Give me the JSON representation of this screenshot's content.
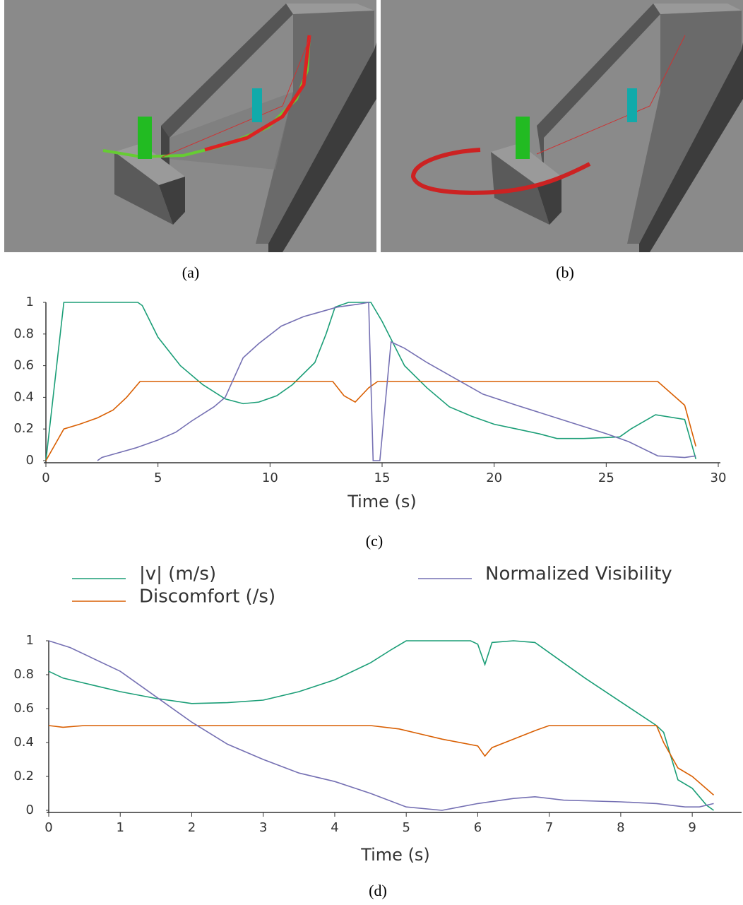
{
  "figures": [
    {
      "caption": "(a)"
    },
    {
      "caption": "(b)"
    }
  ],
  "chart_data": [
    {
      "type": "line",
      "caption": "(c)",
      "xlabel": "Time (s)",
      "xlim": [
        0,
        30
      ],
      "xticks": [
        0,
        5,
        10,
        15,
        20,
        25,
        30
      ],
      "ylim": [
        0,
        1
      ],
      "yticks": [
        0,
        0.2,
        0.4,
        0.6,
        0.8,
        1
      ],
      "series": [
        {
          "name": "|v| (m/s)",
          "color": "#1b9e77",
          "x": [
            0,
            0.8,
            4.1,
            4.3,
            5,
            6,
            7,
            8,
            8.8,
            9.5,
            10.3,
            11,
            12,
            12.5,
            12.9,
            13.5,
            14.5,
            15,
            16,
            17,
            18,
            19,
            20,
            21,
            22,
            22.8,
            24,
            25.6,
            26.1,
            27.2,
            28.5,
            29
          ],
          "values": [
            0,
            1,
            1,
            0.98,
            0.78,
            0.6,
            0.48,
            0.39,
            0.36,
            0.37,
            0.41,
            0.48,
            0.62,
            0.8,
            0.97,
            1,
            1,
            0.88,
            0.6,
            0.46,
            0.34,
            0.28,
            0.23,
            0.2,
            0.17,
            0.14,
            0.14,
            0.15,
            0.2,
            0.29,
            0.26,
            0.01
          ]
        },
        {
          "name": "Discomfort (/s)",
          "color": "#d95f02",
          "x": [
            0,
            0.4,
            0.8,
            1.5,
            2.3,
            3,
            3.6,
            4.2,
            12.8,
            13.3,
            13.8,
            14.4,
            14.8,
            27.3,
            28.5,
            29
          ],
          "values": [
            0,
            0.1,
            0.2,
            0.23,
            0.27,
            0.32,
            0.4,
            0.5,
            0.5,
            0.41,
            0.37,
            0.46,
            0.5,
            0.5,
            0.35,
            0.09
          ]
        },
        {
          "name": "Normalized Visibility",
          "color": "#7570b3",
          "x": [
            2.3,
            2.5,
            3,
            4,
            5,
            5.8,
            6.5,
            7.5,
            8,
            8.8,
            9.5,
            10.5,
            11.5,
            12,
            13,
            14,
            14.4,
            14.6,
            14.9,
            15.4,
            16,
            17,
            18,
            19,
            19.5,
            21,
            23,
            25,
            26,
            27.3,
            28.5,
            29
          ],
          "values": [
            0,
            0.02,
            0.04,
            0.08,
            0.13,
            0.18,
            0.25,
            0.34,
            0.4,
            0.65,
            0.74,
            0.85,
            0.91,
            0.93,
            0.97,
            0.99,
            1,
            0,
            0,
            0.75,
            0.71,
            0.62,
            0.54,
            0.46,
            0.42,
            0.35,
            0.26,
            0.17,
            0.12,
            0.03,
            0.02,
            0.03
          ]
        }
      ]
    },
    {
      "type": "line",
      "caption": "(d)",
      "xlabel": "Time (s)",
      "xlim": [
        0,
        9.7
      ],
      "xticks": [
        0,
        1,
        2,
        3,
        4,
        5,
        6,
        7,
        8,
        9
      ],
      "ylim": [
        0,
        1
      ],
      "yticks": [
        0,
        0.2,
        0.4,
        0.6,
        0.8,
        1
      ],
      "series": [
        {
          "color": "#1b9e77",
          "x": [
            0,
            0.2,
            0.5,
            1,
            1.5,
            2,
            2.5,
            3,
            3.5,
            4,
            4.5,
            4.8,
            5,
            5.9,
            6,
            6.1,
            6.2,
            6.5,
            6.8,
            7,
            7.5,
            8,
            8.5,
            8.6,
            8.8,
            9,
            9.2,
            9.3
          ],
          "values": [
            0.82,
            0.78,
            0.75,
            0.7,
            0.66,
            0.63,
            0.635,
            0.65,
            0.7,
            0.77,
            0.87,
            0.95,
            1,
            1,
            0.98,
            0.86,
            0.99,
            1,
            0.99,
            0.93,
            0.78,
            0.64,
            0.5,
            0.46,
            0.18,
            0.13,
            0.03,
            0
          ]
        },
        {
          "color": "#d95f02",
          "x": [
            0,
            0.2,
            0.5,
            4.5,
            4.9,
            5.2,
            5.5,
            6,
            6.1,
            6.2,
            6.5,
            6.8,
            7,
            8.5,
            8.6,
            8.8,
            9,
            9.3
          ],
          "values": [
            0.5,
            0.49,
            0.5,
            0.5,
            0.48,
            0.45,
            0.42,
            0.38,
            0.32,
            0.37,
            0.42,
            0.47,
            0.5,
            0.5,
            0.4,
            0.25,
            0.2,
            0.09
          ]
        },
        {
          "color": "#7570b3",
          "x": [
            0,
            0.3,
            1,
            1.5,
            2,
            2.5,
            3,
            3.5,
            4,
            4.5,
            5,
            5.5,
            6,
            6.5,
            6.8,
            7.2,
            8,
            8.5,
            8.9,
            9.1,
            9.3
          ],
          "values": [
            1,
            0.96,
            0.82,
            0.67,
            0.52,
            0.39,
            0.3,
            0.22,
            0.17,
            0.1,
            0.02,
            0,
            0.04,
            0.07,
            0.08,
            0.06,
            0.05,
            0.04,
            0.02,
            0.02,
            0.04
          ]
        }
      ]
    }
  ]
}
